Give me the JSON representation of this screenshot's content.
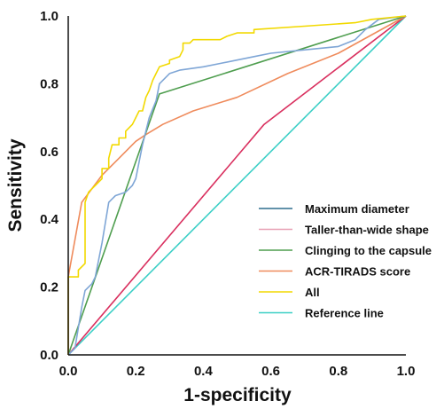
{
  "chart_data": {
    "type": "line",
    "title": "",
    "xlabel": "1-specificity",
    "ylabel": "Sensitivity",
    "xlim": [
      0,
      1
    ],
    "ylim": [
      0,
      1
    ],
    "x_ticks": [
      "0.0",
      "0.2",
      "0.4",
      "0.6",
      "0.8",
      "1.0"
    ],
    "y_ticks": [
      "0.0",
      "0.2",
      "0.4",
      "0.6",
      "0.8",
      "1.0"
    ],
    "grid": false,
    "legend_position": "bottom-right",
    "series": [
      {
        "name": "Maximum diameter",
        "color": "#7fa6d6",
        "legend_color": "#2e6e8e",
        "points": [
          [
            0,
            0
          ],
          [
            0.02,
            0.02
          ],
          [
            0.03,
            0.08
          ],
          [
            0.04,
            0.14
          ],
          [
            0.05,
            0.19
          ],
          [
            0.07,
            0.21
          ],
          [
            0.08,
            0.23
          ],
          [
            0.09,
            0.28
          ],
          [
            0.1,
            0.33
          ],
          [
            0.11,
            0.39
          ],
          [
            0.12,
            0.45
          ],
          [
            0.14,
            0.47
          ],
          [
            0.17,
            0.48
          ],
          [
            0.19,
            0.5
          ],
          [
            0.2,
            0.52
          ],
          [
            0.22,
            0.62
          ],
          [
            0.24,
            0.7
          ],
          [
            0.26,
            0.75
          ],
          [
            0.27,
            0.8
          ],
          [
            0.3,
            0.83
          ],
          [
            0.33,
            0.84
          ],
          [
            0.4,
            0.85
          ],
          [
            0.45,
            0.86
          ],
          [
            0.5,
            0.87
          ],
          [
            0.55,
            0.88
          ],
          [
            0.6,
            0.89
          ],
          [
            0.7,
            0.9
          ],
          [
            0.8,
            0.91
          ],
          [
            0.85,
            0.93
          ],
          [
            0.88,
            0.96
          ],
          [
            0.92,
            0.99
          ],
          [
            1,
            1
          ]
        ]
      },
      {
        "name": "Taller-than-wide shape",
        "color": "#d9305f",
        "legend_color": "#e8a0b4",
        "points": [
          [
            0,
            0
          ],
          [
            0.58,
            0.68
          ],
          [
            1,
            1
          ]
        ]
      },
      {
        "name": "Clinging to the capsule",
        "color": "#4f9e4f",
        "legend_color": "#4f9e4f",
        "points": [
          [
            0,
            0
          ],
          [
            0.27,
            0.77
          ],
          [
            1,
            1
          ]
        ]
      },
      {
        "name": "ACR-TIRADS score",
        "color": "#ef8b5c",
        "legend_color": "#ef8b5c",
        "points": [
          [
            0,
            0
          ],
          [
            0,
            0.23
          ],
          [
            0.04,
            0.45
          ],
          [
            0.1,
            0.53
          ],
          [
            0.15,
            0.58
          ],
          [
            0.2,
            0.63
          ],
          [
            0.23,
            0.65
          ],
          [
            0.28,
            0.68
          ],
          [
            0.37,
            0.72
          ],
          [
            0.5,
            0.76
          ],
          [
            0.65,
            0.83
          ],
          [
            0.8,
            0.89
          ],
          [
            1,
            1
          ]
        ]
      },
      {
        "name": "All",
        "color": "#f2d900",
        "legend_color": "#f2d900",
        "points": [
          [
            0,
            0
          ],
          [
            0,
            0.23
          ],
          [
            0.03,
            0.23
          ],
          [
            0.03,
            0.25
          ],
          [
            0.05,
            0.27
          ],
          [
            0.05,
            0.45
          ],
          [
            0.06,
            0.48
          ],
          [
            0.08,
            0.5
          ],
          [
            0.1,
            0.52
          ],
          [
            0.1,
            0.55
          ],
          [
            0.12,
            0.55
          ],
          [
            0.12,
            0.58
          ],
          [
            0.13,
            0.62
          ],
          [
            0.15,
            0.62
          ],
          [
            0.15,
            0.64
          ],
          [
            0.17,
            0.64
          ],
          [
            0.17,
            0.66
          ],
          [
            0.19,
            0.68
          ],
          [
            0.2,
            0.7
          ],
          [
            0.21,
            0.72
          ],
          [
            0.22,
            0.72
          ],
          [
            0.23,
            0.76
          ],
          [
            0.24,
            0.78
          ],
          [
            0.25,
            0.81
          ],
          [
            0.26,
            0.83
          ],
          [
            0.27,
            0.85
          ],
          [
            0.3,
            0.86
          ],
          [
            0.3,
            0.87
          ],
          [
            0.33,
            0.88
          ],
          [
            0.34,
            0.9
          ],
          [
            0.34,
            0.92
          ],
          [
            0.36,
            0.92
          ],
          [
            0.37,
            0.93
          ],
          [
            0.45,
            0.93
          ],
          [
            0.47,
            0.94
          ],
          [
            0.5,
            0.95
          ],
          [
            0.55,
            0.95
          ],
          [
            0.55,
            0.96
          ],
          [
            0.7,
            0.97
          ],
          [
            0.85,
            0.98
          ],
          [
            0.9,
            0.99
          ],
          [
            1,
            1
          ]
        ]
      },
      {
        "name": "Reference line",
        "color": "#3ccfc6",
        "legend_color": "#3ccfc6",
        "points": [
          [
            0,
            0
          ],
          [
            1,
            1
          ]
        ]
      }
    ]
  }
}
